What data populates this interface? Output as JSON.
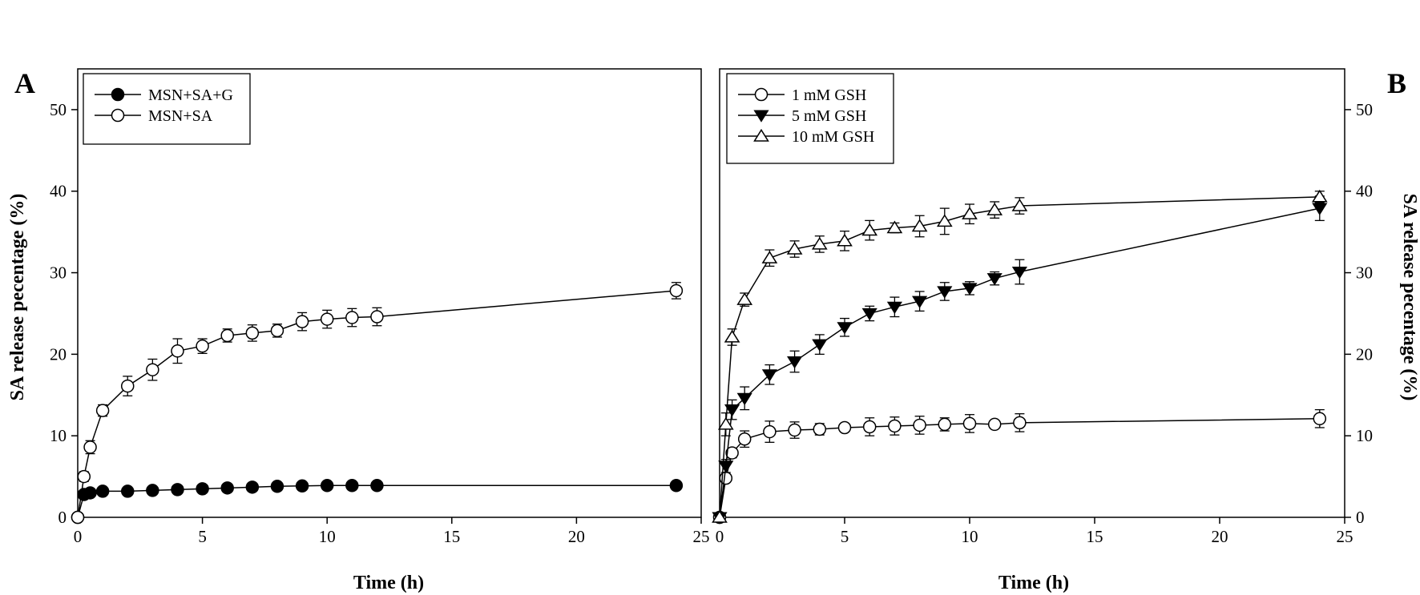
{
  "chart_data": [
    {
      "panel": "A",
      "type": "line",
      "xlabel": "Time (h)",
      "ylabel": "SA release pecentage (%)",
      "xlim": [
        0,
        25
      ],
      "ylim": [
        0,
        55
      ],
      "xticks": [
        0,
        5,
        10,
        15,
        20,
        25
      ],
      "yticks": [
        0,
        10,
        20,
        30,
        40,
        50
      ],
      "yaxis_side": "left",
      "legend_position": "top-left",
      "grid": false,
      "series": [
        {
          "name": "MSN+SA+G",
          "marker": "circle-filled",
          "x": [
            0,
            0.25,
            0.5,
            1,
            2,
            3,
            4,
            5,
            6,
            7,
            8,
            9,
            10,
            11,
            12,
            24
          ],
          "y": [
            0,
            2.8,
            3.0,
            3.2,
            3.2,
            3.3,
            3.4,
            3.5,
            3.6,
            3.7,
            3.8,
            3.85,
            3.9,
            3.9,
            3.9,
            3.9
          ],
          "err": [
            0,
            0.2,
            0.2,
            0.2,
            0.2,
            0.2,
            0.2,
            0.2,
            0.2,
            0.2,
            0.2,
            0.2,
            0.2,
            0.2,
            0.2,
            0.2
          ]
        },
        {
          "name": "MSN+SA",
          "marker": "circle-open",
          "x": [
            0,
            0.25,
            0.5,
            1,
            2,
            3,
            4,
            5,
            6,
            7,
            8,
            9,
            10,
            11,
            12,
            24
          ],
          "y": [
            0,
            5.0,
            8.6,
            13.1,
            16.1,
            18.1,
            20.4,
            21.0,
            22.3,
            22.6,
            22.9,
            24.0,
            24.3,
            24.5,
            24.6,
            27.8
          ],
          "err": [
            0,
            0.6,
            0.8,
            0.7,
            1.2,
            1.3,
            1.5,
            0.9,
            0.8,
            1.0,
            0.8,
            1.1,
            1.1,
            1.1,
            1.1,
            1.0
          ]
        }
      ]
    },
    {
      "panel": "B",
      "type": "line",
      "xlabel": "Time (h)",
      "ylabel": "SA release pecentage (%)",
      "xlim": [
        0,
        25
      ],
      "ylim": [
        0,
        55
      ],
      "xticks": [
        0,
        5,
        10,
        15,
        20,
        25
      ],
      "yticks": [
        0,
        10,
        20,
        30,
        40,
        50
      ],
      "yaxis_side": "right",
      "legend_position": "top-left",
      "grid": false,
      "series": [
        {
          "name": "1 mM GSH",
          "marker": "circle-open",
          "x": [
            0,
            0.25,
            0.5,
            1,
            2,
            3,
            4,
            5,
            6,
            7,
            8,
            9,
            10,
            11,
            12,
            24
          ],
          "y": [
            0,
            4.8,
            7.9,
            9.6,
            10.5,
            10.7,
            10.8,
            11.0,
            11.1,
            11.2,
            11.3,
            11.4,
            11.5,
            11.4,
            11.6,
            12.1
          ],
          "err": [
            0,
            0.4,
            0.6,
            1.0,
            1.3,
            1.0,
            0.7,
            0.5,
            1.1,
            1.1,
            1.1,
            0.8,
            1.1,
            0.4,
            1.1,
            1.1
          ]
        },
        {
          "name": "5 mM GSH",
          "marker": "triangle-down-filled",
          "x": [
            0,
            0.25,
            0.5,
            1,
            2,
            3,
            4,
            5,
            6,
            7,
            8,
            9,
            10,
            11,
            12,
            24
          ],
          "y": [
            0,
            6.3,
            13.2,
            14.6,
            17.5,
            19.1,
            21.2,
            23.3,
            25.0,
            25.8,
            26.5,
            27.7,
            28.1,
            29.3,
            30.1,
            37.9
          ],
          "err": [
            0,
            0.8,
            1.2,
            1.4,
            1.2,
            1.3,
            1.2,
            1.1,
            0.9,
            1.2,
            1.2,
            1.1,
            0.8,
            0.8,
            1.5,
            1.5
          ]
        },
        {
          "name": "10 mM GSH",
          "marker": "triangle-up-open",
          "x": [
            0,
            0.25,
            0.5,
            1,
            2,
            3,
            4,
            5,
            6,
            7,
            8,
            9,
            10,
            11,
            12,
            24
          ],
          "y": [
            0,
            11.4,
            22.1,
            26.7,
            31.8,
            32.9,
            33.5,
            33.9,
            35.2,
            35.5,
            35.7,
            36.3,
            37.2,
            37.7,
            38.2,
            39.3
          ],
          "err": [
            0,
            1.4,
            1.0,
            0.8,
            1.0,
            1.0,
            1.0,
            1.2,
            1.2,
            0.6,
            1.3,
            1.6,
            1.2,
            1.0,
            1.0,
            0.7
          ]
        }
      ]
    }
  ]
}
